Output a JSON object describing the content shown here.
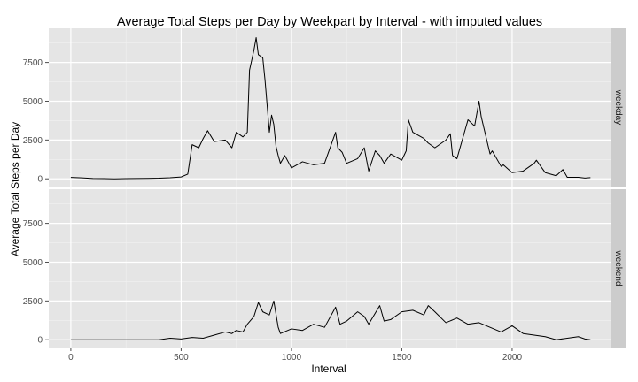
{
  "chart_data": {
    "type": "line",
    "title": "Average Total Steps per Day by Weekpart by Interval - with imputed values",
    "xlabel": "Interval",
    "ylabel": "Average Total Steps per Day",
    "xlim": [
      -100,
      2450
    ],
    "ylim": [
      -500,
      9700
    ],
    "x_ticks": [
      0,
      500,
      1000,
      1500,
      2000
    ],
    "x_tick_labels": [
      "0",
      "500",
      "1000",
      "1500",
      "2000"
    ],
    "y_ticks": [
      0,
      2500,
      5000,
      7500
    ],
    "y_tick_labels": [
      "0",
      "2500",
      "5000",
      "7500"
    ],
    "grid": true,
    "legend": "none",
    "line_color": "#000000",
    "panel_background": "#e5e5e5",
    "strip_background": "#cccccc",
    "facets": [
      {
        "name": "weekday",
        "series": [
          {
            "x": [
              0,
              50,
              100,
              150,
              200,
              250,
              300,
              350,
              400,
              450,
              500,
              530,
              550,
              580,
              600,
              620,
              650,
              700,
              730,
              750,
              780,
              800,
              810,
              830,
              840,
              850,
              870,
              880,
              900,
              910,
              920,
              930,
              940,
              950,
              970,
              1000,
              1050,
              1100,
              1150,
              1200,
              1210,
              1230,
              1250,
              1300,
              1330,
              1350,
              1380,
              1400,
              1420,
              1450,
              1500,
              1510,
              1520,
              1530,
              1550,
              1600,
              1620,
              1650,
              1700,
              1720,
              1730,
              1750,
              1800,
              1830,
              1850,
              1860,
              1900,
              1910,
              1950,
              1960,
              2000,
              2050,
              2100,
              2110,
              2150,
              2200,
              2230,
              2250,
              2300,
              2330,
              2355
            ],
            "y": [
              90,
              60,
              20,
              10,
              0,
              10,
              20,
              30,
              40,
              70,
              120,
              300,
              2200,
              2000,
              2600,
              3100,
              2400,
              2500,
              2000,
              3000,
              2700,
              3000,
              7000,
              8300,
              9100,
              8000,
              7800,
              6400,
              3000,
              4100,
              3500,
              2100,
              1500,
              1000,
              1500,
              700,
              1100,
              900,
              1000,
              3000,
              2000,
              1700,
              1000,
              1300,
              2000,
              500,
              1800,
              1500,
              1000,
              1600,
              1200,
              1500,
              1800,
              3800,
              3000,
              2600,
              2300,
              2000,
              2500,
              2900,
              1500,
              1300,
              3800,
              3400,
              5000,
              4000,
              1600,
              1800,
              800,
              900,
              400,
              500,
              1000,
              1200,
              400,
              200,
              600,
              100,
              100,
              50,
              80
            ]
          }
        ]
      },
      {
        "name": "weekend",
        "series": [
          {
            "x": [
              0,
              100,
              200,
              300,
              400,
              450,
              500,
              550,
              600,
              650,
              700,
              730,
              750,
              780,
              800,
              830,
              850,
              870,
              900,
              920,
              940,
              950,
              1000,
              1050,
              1100,
              1150,
              1200,
              1220,
              1250,
              1300,
              1330,
              1350,
              1400,
              1420,
              1450,
              1500,
              1550,
              1600,
              1620,
              1650,
              1700,
              1750,
              1800,
              1850,
              1900,
              1950,
              2000,
              2050,
              2100,
              2150,
              2200,
              2250,
              2300,
              2330,
              2355
            ],
            "y": [
              0,
              0,
              0,
              0,
              0,
              100,
              50,
              150,
              100,
              300,
              500,
              400,
              600,
              500,
              1000,
              1500,
              2400,
              1800,
              1600,
              2500,
              800,
              400,
              700,
              600,
              1000,
              800,
              2100,
              1000,
              1200,
              1800,
              1500,
              1000,
              2200,
              1200,
              1300,
              1800,
              1900,
              1600,
              2200,
              1800,
              1100,
              1400,
              1000,
              1100,
              800,
              500,
              900,
              400,
              300,
              200,
              0,
              100,
              200,
              50,
              0
            ]
          }
        ]
      }
    ]
  }
}
